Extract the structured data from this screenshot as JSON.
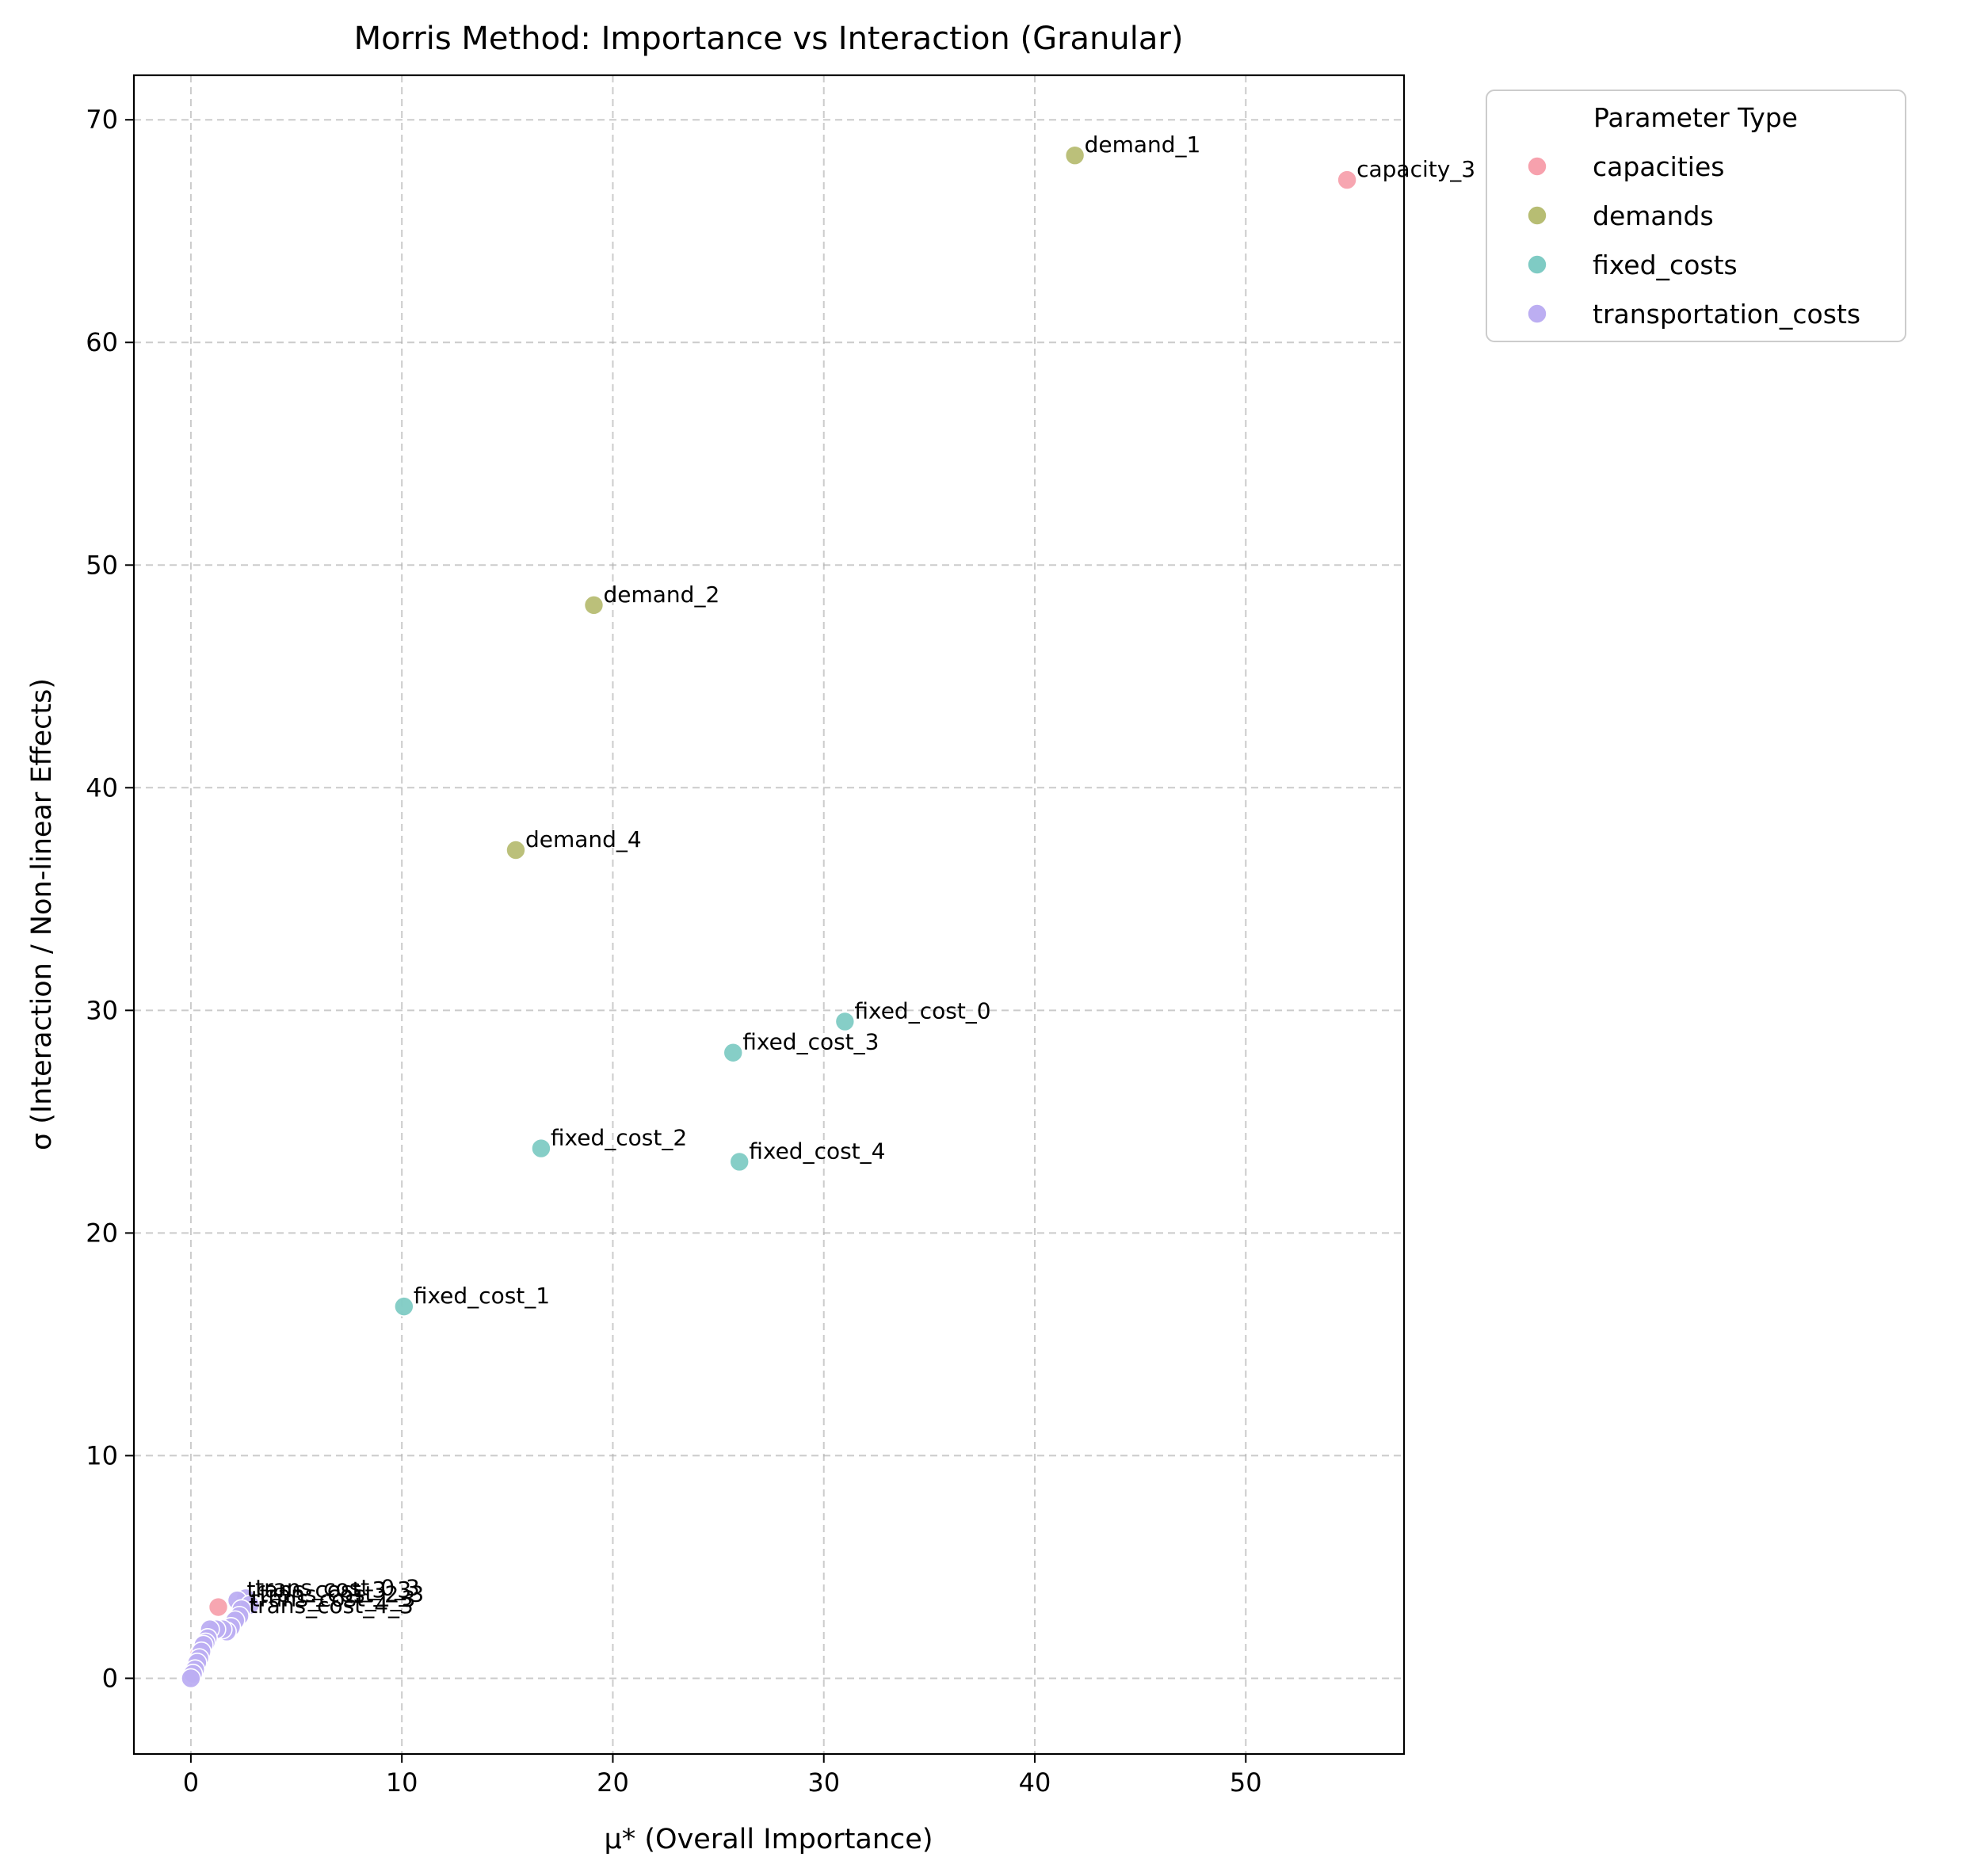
{
  "chart_data": {
    "type": "scatter",
    "title": "Morris Method: Importance vs Interaction (Granular)",
    "xlabel": "μ* (Overall Importance)",
    "ylabel": "σ (Interaction / Non-linear Effects)",
    "xlim": [
      -2.7,
      57.5
    ],
    "ylim": [
      -3.4,
      72
    ],
    "xticks": [
      0,
      10,
      20,
      30,
      40,
      50
    ],
    "yticks": [
      0,
      10,
      20,
      30,
      40,
      50,
      60,
      70
    ],
    "grid": true,
    "legend": {
      "title": "Parameter Type",
      "position": "outside-top-right"
    },
    "series": [
      {
        "name": "capacities",
        "color": "#f7a1ad",
        "points": [
          {
            "x": 54.8,
            "y": 67.3,
            "label": "capacity_3"
          },
          {
            "x": 1.3,
            "y": 3.2,
            "label": ""
          },
          {
            "x": 0.4,
            "y": 1.1,
            "label": ""
          }
        ]
      },
      {
        "name": "demands",
        "color": "#b7bd73",
        "points": [
          {
            "x": 41.9,
            "y": 68.4,
            "label": "demand_1"
          },
          {
            "x": 19.1,
            "y": 48.2,
            "label": "demand_2"
          },
          {
            "x": 15.4,
            "y": 37.2,
            "label": "demand_4"
          }
        ]
      },
      {
        "name": "fixed_costs",
        "color": "#7fcbc4",
        "points": [
          {
            "x": 31.0,
            "y": 29.5,
            "label": "fixed_cost_0"
          },
          {
            "x": 25.7,
            "y": 28.1,
            "label": "fixed_cost_3"
          },
          {
            "x": 16.6,
            "y": 23.8,
            "label": "fixed_cost_2"
          },
          {
            "x": 26.0,
            "y": 23.2,
            "label": "fixed_cost_4"
          },
          {
            "x": 10.1,
            "y": 16.7,
            "label": "fixed_cost_1"
          }
        ]
      },
      {
        "name": "transportation_costs",
        "color": "#bcaef2",
        "points": [
          {
            "x": 2.6,
            "y": 3.6,
            "label": "trans_cost_0_3"
          },
          {
            "x": 2.2,
            "y": 3.5,
            "label": "trans_cost_3_3"
          },
          {
            "x": 2.8,
            "y": 3.3,
            "label": "trans_cost_2_3"
          },
          {
            "x": 2.4,
            "y": 3.1,
            "label": "trans_cost_1_3"
          },
          {
            "x": 2.3,
            "y": 2.8,
            "label": "trans_cost_4_3"
          },
          {
            "x": 2.1,
            "y": 2.6,
            "label": ""
          },
          {
            "x": 1.9,
            "y": 2.3,
            "label": ""
          },
          {
            "x": 1.7,
            "y": 2.1,
            "label": ""
          },
          {
            "x": 1.5,
            "y": 2.2,
            "label": ""
          },
          {
            "x": 1.2,
            "y": 2.2,
            "label": ""
          },
          {
            "x": 0.9,
            "y": 2.2,
            "label": ""
          },
          {
            "x": 0.8,
            "y": 1.8,
            "label": ""
          },
          {
            "x": 0.7,
            "y": 1.6,
            "label": ""
          },
          {
            "x": 0.6,
            "y": 1.5,
            "label": ""
          },
          {
            "x": 0.5,
            "y": 1.2,
            "label": ""
          },
          {
            "x": 0.4,
            "y": 0.9,
            "label": ""
          },
          {
            "x": 0.3,
            "y": 0.7,
            "label": ""
          },
          {
            "x": 0.2,
            "y": 0.4,
            "label": ""
          },
          {
            "x": 0.1,
            "y": 0.2,
            "label": ""
          },
          {
            "x": 0.0,
            "y": 0.0,
            "label": ""
          }
        ]
      }
    ]
  }
}
